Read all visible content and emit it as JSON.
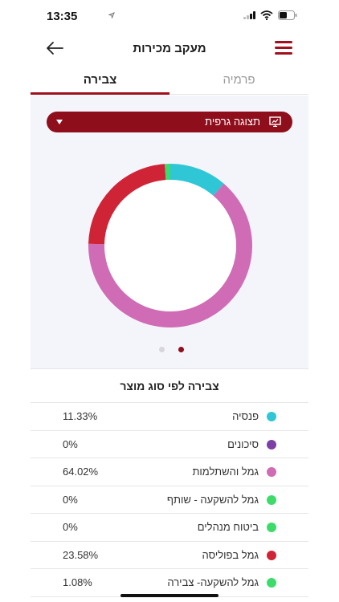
{
  "status_bar": {
    "time": "13:35"
  },
  "app_bar": {
    "title": "מעקב מכירות"
  },
  "tabs": [
    {
      "label": "צבירה",
      "active": true
    },
    {
      "label": "פרמיה",
      "active": false
    }
  ],
  "view_selector": {
    "label": "תצוגה גרפית"
  },
  "pagination": {
    "count": 2,
    "active_index": 0
  },
  "section_title": "צבירה לפי סוג מוצר",
  "colors": {
    "accent": "#a0101f",
    "selector_bg": "#8f0e1c"
  },
  "chart_data": {
    "type": "pie",
    "categories": [
      "פנסיה",
      "סיכונים",
      "גמל והשתלמות",
      "גמל להשקעה - שותף",
      "ביטוח מנהלים",
      "גמל בפוליסה",
      "גמל להשקעה- צבירה"
    ],
    "values": [
      11.33,
      0,
      64.02,
      0,
      0,
      23.58,
      1.08
    ],
    "colors": [
      "#2fc6d6",
      "#7d3fa5",
      "#cf6cb5",
      "#3ddc6a",
      "#3ddc6a",
      "#cf2436",
      "#3ddc6a"
    ]
  },
  "products": [
    {
      "name": "פנסיה",
      "value": "11.33%",
      "color": "#2fc6d6"
    },
    {
      "name": "סיכונים",
      "value": "0%",
      "color": "#7d3fa5"
    },
    {
      "name": "גמל והשתלמות",
      "value": "64.02%",
      "color": "#cf6cb5"
    },
    {
      "name": "גמל להשקעה - שותף",
      "value": "0%",
      "color": "#3ddc6a"
    },
    {
      "name": "ביטוח מנהלים",
      "value": "0%",
      "color": "#3ddc6a"
    },
    {
      "name": "גמל בפוליסה",
      "value": "23.58%",
      "color": "#cf2436"
    },
    {
      "name": "גמל להשקעה- צבירה",
      "value": "1.08%",
      "color": "#3ddc6a"
    }
  ]
}
